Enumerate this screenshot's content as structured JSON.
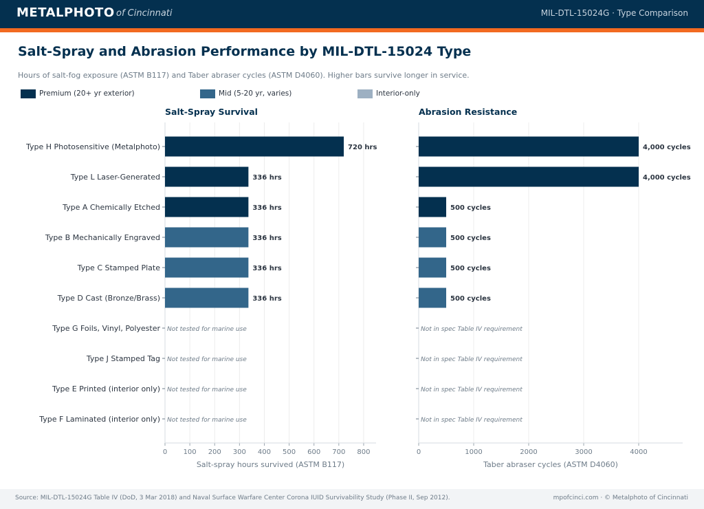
{
  "header": {
    "brand": "METALPHOTO",
    "brand_sub": "of Cincinnati",
    "right_text": "MIL-DTL-15024G  ·  Type Comparison"
  },
  "page": {
    "title": "Salt-Spray and Abrasion Performance by MIL-DTL-15024 Type",
    "subtitle": "Hours of salt-fog exposure (ASTM B117) and Taber abraser cycles (ASTM D4060). Higher bars survive longer in service."
  },
  "legend": [
    {
      "label": "Premium (20+ yr exterior)",
      "color": "#04304f"
    },
    {
      "label": "Mid (5-20 yr, varies)",
      "color": "#33668a"
    },
    {
      "label": "Interior-only",
      "color": "#9db0c2"
    }
  ],
  "footer": {
    "source": "Source: MIL-DTL-15024G Table IV (DoD, 3 Mar 2018) and Naval Surface Warfare Center Corona IUID Survivability Study (Phase II, Sep 2012).",
    "credit": "mpofcinci.com  ·  © Metalphoto of Cincinnati"
  },
  "chart_data": [
    {
      "type": "bar",
      "orientation": "horizontal",
      "title": "Salt-Spray Survival",
      "xlabel": "Salt-spray hours survived (ASTM B117)",
      "xlim": [
        0,
        850
      ],
      "xticks": [
        0,
        100,
        200,
        300,
        400,
        500,
        600,
        700,
        800
      ],
      "grid": true,
      "unit_suffix": " hrs",
      "missing_label": "Not tested for marine use",
      "categories": [
        "Type H  Photosensitive (Metalphoto)",
        "Type L  Laser-Generated",
        "Type A  Chemically Etched",
        "Type B  Mechanically Engraved",
        "Type C  Stamped Plate",
        "Type D  Cast (Bronze/Brass)",
        "Type G  Foils, Vinyl, Polyester",
        "Type J  Stamped Tag",
        "Type E  Printed (interior only)",
        "Type F  Laminated (interior only)"
      ],
      "tiers": [
        "premium",
        "premium",
        "premium",
        "mid",
        "mid",
        "mid",
        "mid",
        "mid",
        "interior",
        "interior"
      ],
      "values": [
        720,
        336,
        336,
        336,
        336,
        336,
        null,
        null,
        null,
        null
      ],
      "data_labels": [
        "720 hrs",
        "336 hrs",
        "336 hrs",
        "336 hrs",
        "336 hrs",
        "336 hrs",
        "Not tested for marine use",
        "Not tested for marine use",
        "Not tested for marine use",
        "Not tested for marine use"
      ]
    },
    {
      "type": "bar",
      "orientation": "horizontal",
      "title": "Abrasion Resistance",
      "xlabel": "Taber abraser cycles (ASTM D4060)",
      "xlim": [
        0,
        4800
      ],
      "xticks": [
        0,
        1000,
        2000,
        3000,
        4000
      ],
      "grid": true,
      "unit_suffix": " cycles",
      "missing_label": "Not in spec Table IV requirement",
      "categories": [
        "Type H  Photosensitive (Metalphoto)",
        "Type L  Laser-Generated",
        "Type A  Chemically Etched",
        "Type B  Mechanically Engraved",
        "Type C  Stamped Plate",
        "Type D  Cast (Bronze/Brass)",
        "Type G  Foils, Vinyl, Polyester",
        "Type J  Stamped Tag",
        "Type E  Printed (interior only)",
        "Type F  Laminated (interior only)"
      ],
      "tiers": [
        "premium",
        "premium",
        "premium",
        "mid",
        "mid",
        "mid",
        "mid",
        "mid",
        "interior",
        "interior"
      ],
      "values": [
        4000,
        4000,
        500,
        500,
        500,
        500,
        null,
        null,
        null,
        null
      ],
      "data_labels": [
        "4,000 cycles",
        "4,000 cycles",
        "500 cycles",
        "500 cycles",
        "500 cycles",
        "500 cycles",
        "Not in spec Table IV requirement",
        "Not in spec Table IV requirement",
        "Not in spec Table IV requirement",
        "Not in spec Table IV requirement"
      ]
    }
  ],
  "colors": {
    "premium": "#04304f",
    "mid": "#33668a",
    "interior": "#9db0c2",
    "accent": "#f26a21",
    "axis_text": "#6d7b88",
    "grid": "#ececec"
  }
}
